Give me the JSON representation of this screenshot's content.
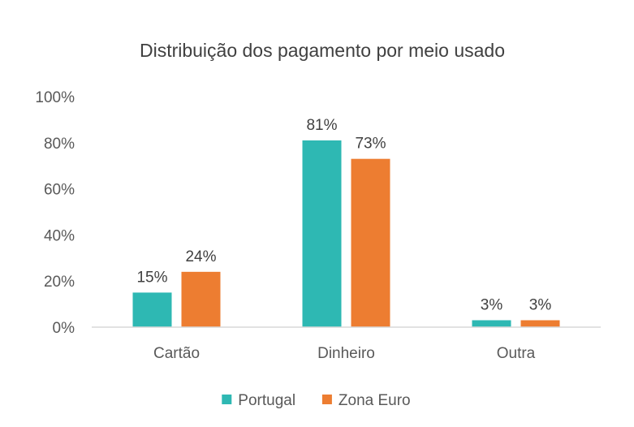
{
  "chart_data": {
    "type": "bar",
    "title": "Distribuição dos pagamento por meio usado",
    "xlabel": "",
    "ylabel": "",
    "categories": [
      "Cartão",
      "Dinheiro",
      "Outra"
    ],
    "series": [
      {
        "name": "Portugal",
        "values": [
          15,
          81,
          3
        ],
        "color": "#2EB8B3"
      },
      {
        "name": "Zona Euro",
        "values": [
          24,
          73,
          3
        ],
        "color": "#ED7D31"
      }
    ],
    "data_labels": [
      [
        "15%",
        "81%",
        "3%"
      ],
      [
        "24%",
        "73%",
        "3%"
      ]
    ],
    "ylim": [
      0,
      100
    ],
    "yticks": [
      0,
      20,
      40,
      60,
      80,
      100
    ],
    "ytick_labels": [
      "0%",
      "20%",
      "40%",
      "60%",
      "80%",
      "100%"
    ],
    "grid": false,
    "legend_position": "bottom"
  }
}
